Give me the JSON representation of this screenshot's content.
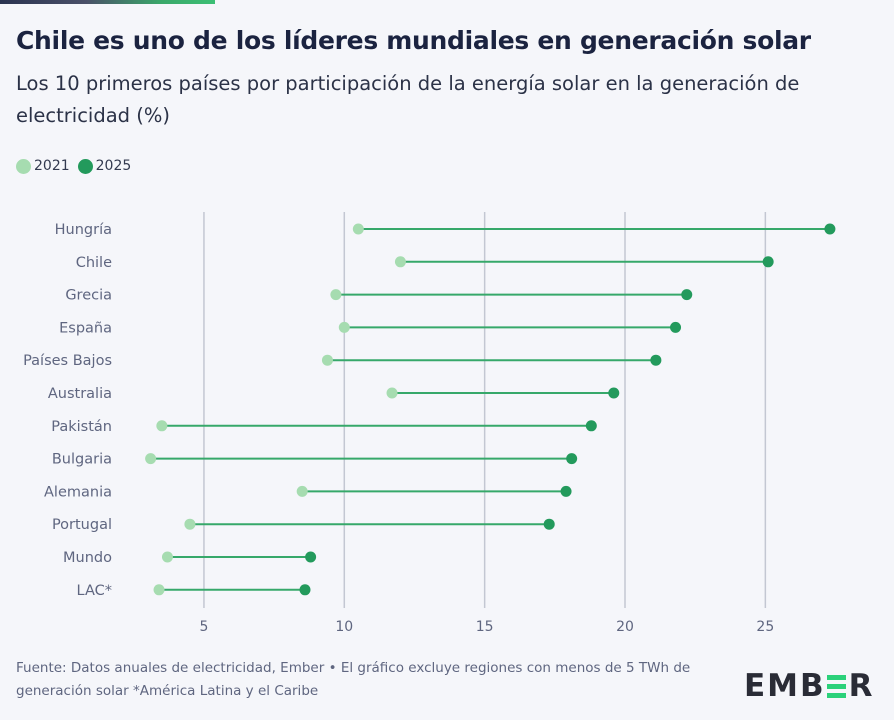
{
  "header": {
    "title": "Chile es uno de los líderes mundiales en generación solar",
    "subtitle": "Los 10 primeros países por participación de la energía solar en la generación de electricidad (%)"
  },
  "legend": [
    {
      "label": "2021",
      "color": "#a6dcb0"
    },
    {
      "label": "2025",
      "color": "#239a5c"
    }
  ],
  "colors": {
    "line": "#36a86a",
    "grid": "#c3c7d2",
    "label": "#5f6680"
  },
  "chart_data": {
    "type": "dumbbell",
    "title": "Chile es uno de los líderes mundiales en generación solar",
    "subtitle": "Los 10 primeros países por participación de la energía solar en la generación de electricidad (%)",
    "xlabel": "",
    "ylabel": "",
    "xlim": [
      0,
      28
    ],
    "xticks": [
      5,
      10,
      15,
      20,
      25
    ],
    "grid": true,
    "legend_position": "top-left",
    "categories": [
      "Hungría",
      "Chile",
      "Grecia",
      "España",
      "Países Bajos",
      "Australia",
      "Pakistán",
      "Bulgaria",
      "Alemania",
      "Portugal",
      "Mundo",
      "LAC*"
    ],
    "series": [
      {
        "name": "2021",
        "values": [
          10.5,
          12.0,
          9.7,
          10.0,
          9.4,
          11.7,
          3.5,
          3.1,
          8.5,
          4.5,
          3.7,
          3.4
        ]
      },
      {
        "name": "2025",
        "values": [
          27.3,
          25.1,
          22.2,
          21.8,
          21.1,
          19.6,
          18.8,
          18.1,
          17.9,
          17.3,
          8.8,
          8.6
        ]
      }
    ]
  },
  "footer": {
    "source": "Fuente: Datos anuales de electricidad, Ember • El gráfico excluye regiones con menos de 5 TWh de generación solar *América Latina y el Caribe"
  },
  "logo": {
    "left": "EMB",
    "right": "R"
  }
}
